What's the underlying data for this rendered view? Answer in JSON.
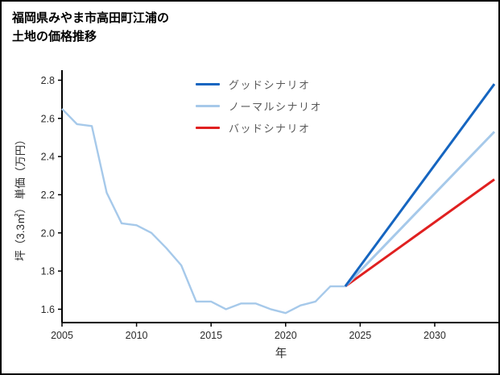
{
  "title": {
    "line1": "福岡県みやま市高田町江浦の",
    "line2": "土地の価格推移"
  },
  "chart_data": {
    "type": "line",
    "title": "福岡県みやま市高田町江浦の土地の価格推移",
    "xlabel": "年",
    "ylabel": "坪（3.3㎡） 単価（万円）",
    "xlim": [
      2005,
      2034
    ],
    "ylim": [
      1.53,
      2.84
    ],
    "x_ticks": [
      "2005",
      "2010",
      "2015",
      "2020",
      "2025",
      "2030"
    ],
    "y_ticks": [
      "1.6",
      "1.8",
      "2.0",
      "2.2",
      "2.4",
      "2.6",
      "2.8"
    ],
    "grid": false,
    "legend_position": "upper-center",
    "axis_color": "#000000",
    "tick_color": "#2b2b2b",
    "series": [
      {
        "name": "historical",
        "color": "#a6c9ea",
        "width": 2.4,
        "z": 0,
        "x": [
          2005,
          2006,
          2007,
          2008,
          2009,
          2010,
          2011,
          2012,
          2013,
          2014,
          2015,
          2016,
          2017,
          2018,
          2019,
          2020,
          2021,
          2022,
          2023,
          2024
        ],
        "y": [
          2.65,
          2.57,
          2.56,
          2.21,
          2.05,
          2.04,
          2.0,
          1.92,
          1.83,
          1.64,
          1.64,
          1.6,
          1.63,
          1.63,
          1.6,
          1.58,
          1.62,
          1.64,
          1.72,
          1.72
        ]
      },
      {
        "name": "グッドシナリオ",
        "color": "#1565c0",
        "width": 3,
        "z": 3,
        "x": [
          2024,
          2034
        ],
        "y": [
          1.72,
          2.78
        ]
      },
      {
        "name": "ノーマルシナリオ",
        "color": "#a6c9ea",
        "width": 3,
        "z": 2,
        "x": [
          2024,
          2034
        ],
        "y": [
          1.72,
          2.53
        ]
      },
      {
        "name": "バッドシナリオ",
        "color": "#e02020",
        "width": 3,
        "z": 1,
        "x": [
          2024,
          2034
        ],
        "y": [
          1.72,
          2.28
        ]
      }
    ]
  }
}
